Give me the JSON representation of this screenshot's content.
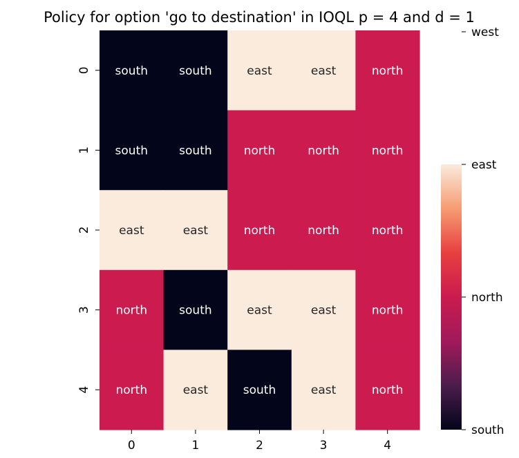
{
  "chart_data": {
    "type": "heatmap",
    "title": "Policy for option 'go to destination' in IOQL p = 4 and d = 1",
    "xlabel": "",
    "ylabel": "",
    "x_tick_labels": [
      "0",
      "1",
      "2",
      "3",
      "4"
    ],
    "y_tick_labels": [
      "0",
      "1",
      "2",
      "3",
      "4"
    ],
    "rows": [
      [
        "south",
        "south",
        "east",
        "east",
        "north"
      ],
      [
        "south",
        "south",
        "north",
        "north",
        "north"
      ],
      [
        "east",
        "east",
        "north",
        "north",
        "north"
      ],
      [
        "north",
        "south",
        "east",
        "east",
        "north"
      ],
      [
        "north",
        "east",
        "south",
        "east",
        "north"
      ]
    ],
    "action_values": {
      "south": 0,
      "north": 1,
      "east": 2,
      "west": 3
    },
    "colorbar": {
      "labels": [
        "south",
        "north",
        "east",
        "west"
      ],
      "range": [
        0,
        2
      ],
      "colormap": "rocket",
      "colors": [
        "#03051a",
        "#4c1d4b",
        "#a11a5b",
        "#cb1b4f",
        "#e83f3f",
        "#f69c73",
        "#faebdd"
      ]
    },
    "cell_colors": {
      "south": "#03051a",
      "north": "#cb1b4f",
      "east": "#faebdd"
    },
    "annotation_colors": {
      "south": "#ffffff",
      "north": "#ffffff",
      "east": "#262626"
    },
    "grid": false,
    "legend": "colorbar-right"
  }
}
